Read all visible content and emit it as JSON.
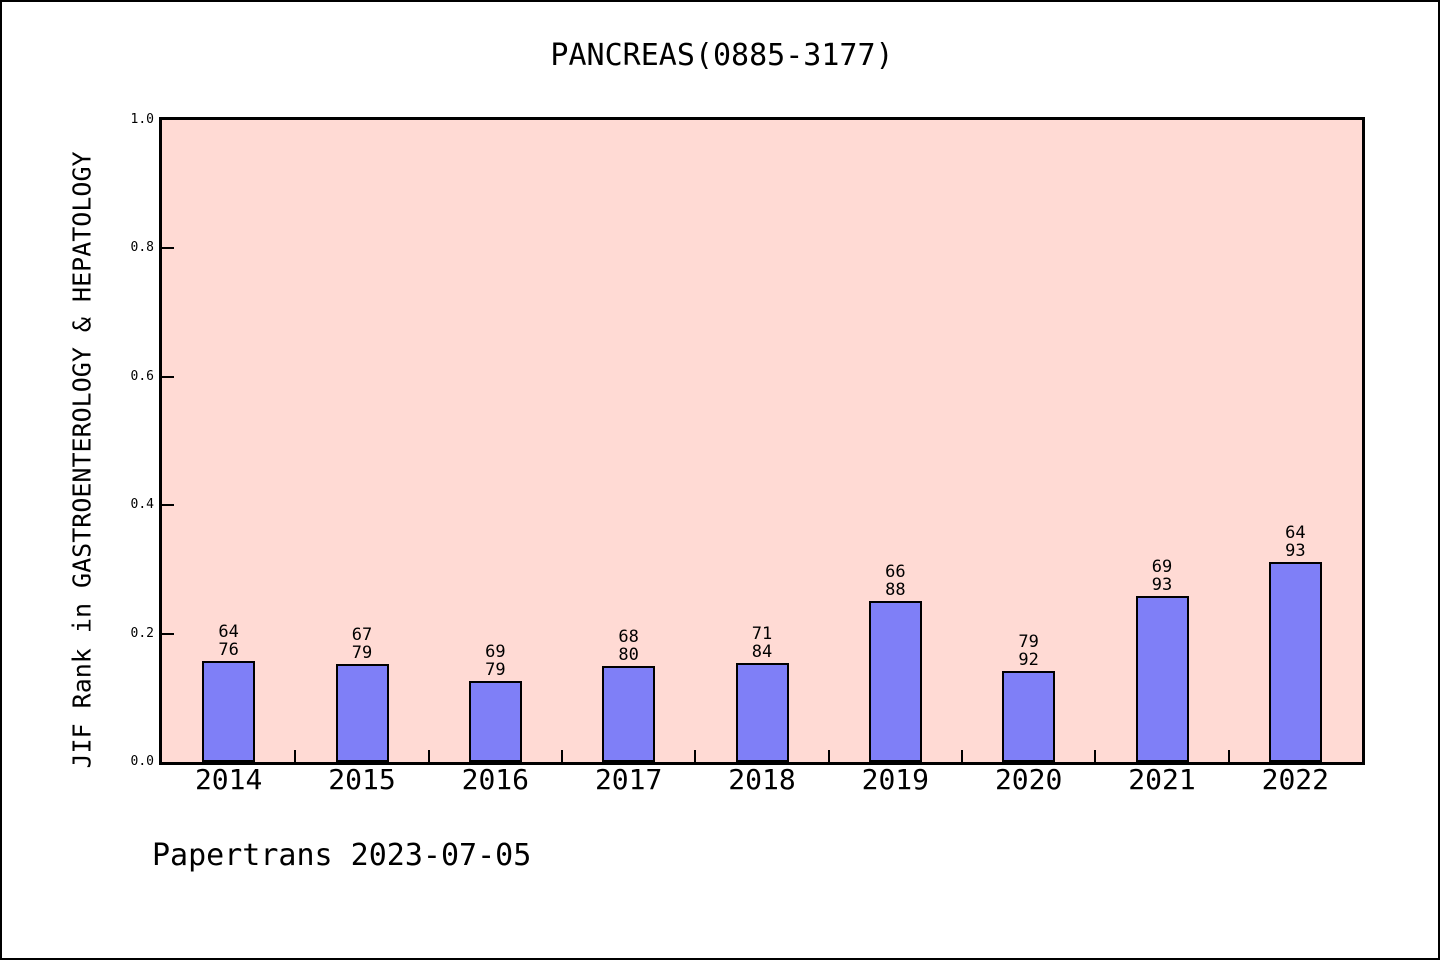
{
  "title": "PANCREAS(0885-3177)",
  "footer": "Papertrans 2023-07-05",
  "chart_data": {
    "type": "bar",
    "title": "PANCREAS(0885-3177)",
    "xlabel": "",
    "ylabel": "JIF Rank in GASTROENTEROLOGY & HEPATOLOGY",
    "ylim": [
      0,
      1
    ],
    "yticks": [
      0.0,
      0.2,
      0.4,
      0.6,
      0.8,
      1.0
    ],
    "grid": "off",
    "legend_position": "none",
    "categories": [
      "2014",
      "2015",
      "2016",
      "2017",
      "2018",
      "2019",
      "2020",
      "2021",
      "2022"
    ],
    "series": [
      {
        "name": "JIF rank in category (numerator label)",
        "values": [
          64,
          67,
          69,
          68,
          71,
          66,
          79,
          69,
          64
        ]
      },
      {
        "name": "category size (denominator label)",
        "values": [
          76,
          79,
          79,
          80,
          84,
          88,
          92,
          93,
          93
        ]
      }
    ],
    "bar_height_rule": "bar height = 1 - rank/total",
    "bar_heights_axis_units": [
      0.158,
      0.152,
      0.127,
      0.15,
      0.155,
      0.25,
      0.141,
      0.258,
      0.312
    ],
    "colors": {
      "bar_fill": "#7f7ff7",
      "bar_edge": "#000000",
      "plot_background": "#ffdad4",
      "page_background": "#ffffff",
      "text": "#000000"
    }
  }
}
